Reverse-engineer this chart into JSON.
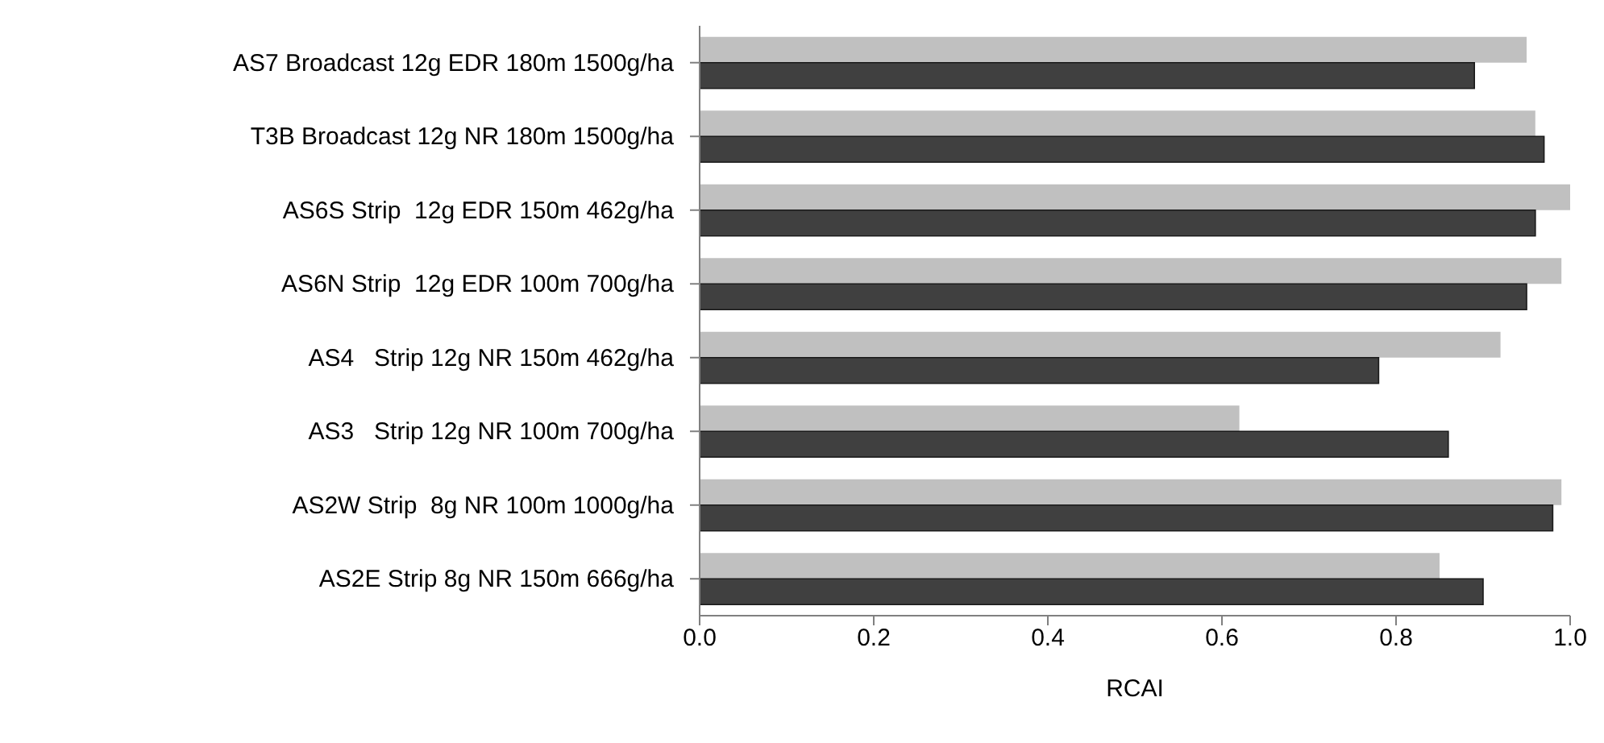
{
  "chart_data": {
    "type": "bar",
    "orientation": "horizontal",
    "xlabel": "RCAI",
    "categories": [
      "AS7 Broadcast 12g EDR 180m 1500g/ha",
      "T3B Broadcast 12g NR 180m 1500g/ha",
      "AS6S Strip  12g EDR 150m 462g/ha",
      "AS6N Strip  12g EDR 100m 700g/ha",
      "AS4   Strip 12g NR 150m 462g/ha",
      "AS3   Strip 12g NR 100m 700g/ha",
      "AS2W Strip  8g NR 100m 1000g/ha",
      "AS2E Strip 8g NR 150m 666g/ha"
    ],
    "series": [
      {
        "color": "#c0c0c0",
        "values": [
          0.95,
          0.96,
          1.0,
          0.99,
          0.92,
          0.62,
          0.99,
          0.85
        ]
      },
      {
        "color": "#404040",
        "values": [
          0.89,
          0.97,
          0.96,
          0.95,
          0.78,
          0.86,
          0.98,
          0.9
        ]
      }
    ],
    "xlim": [
      0,
      1.0
    ],
    "xticks": [
      {
        "value": 0,
        "label": "0.0"
      },
      {
        "value": 0.2,
        "label": "0.2"
      },
      {
        "value": 0.4,
        "label": "0.4"
      },
      {
        "value": 0.6,
        "label": "0.6"
      },
      {
        "value": 0.8,
        "label": "0.8"
      },
      {
        "value": 1.0,
        "label": "1.0"
      }
    ],
    "grid": false,
    "legend": false
  }
}
